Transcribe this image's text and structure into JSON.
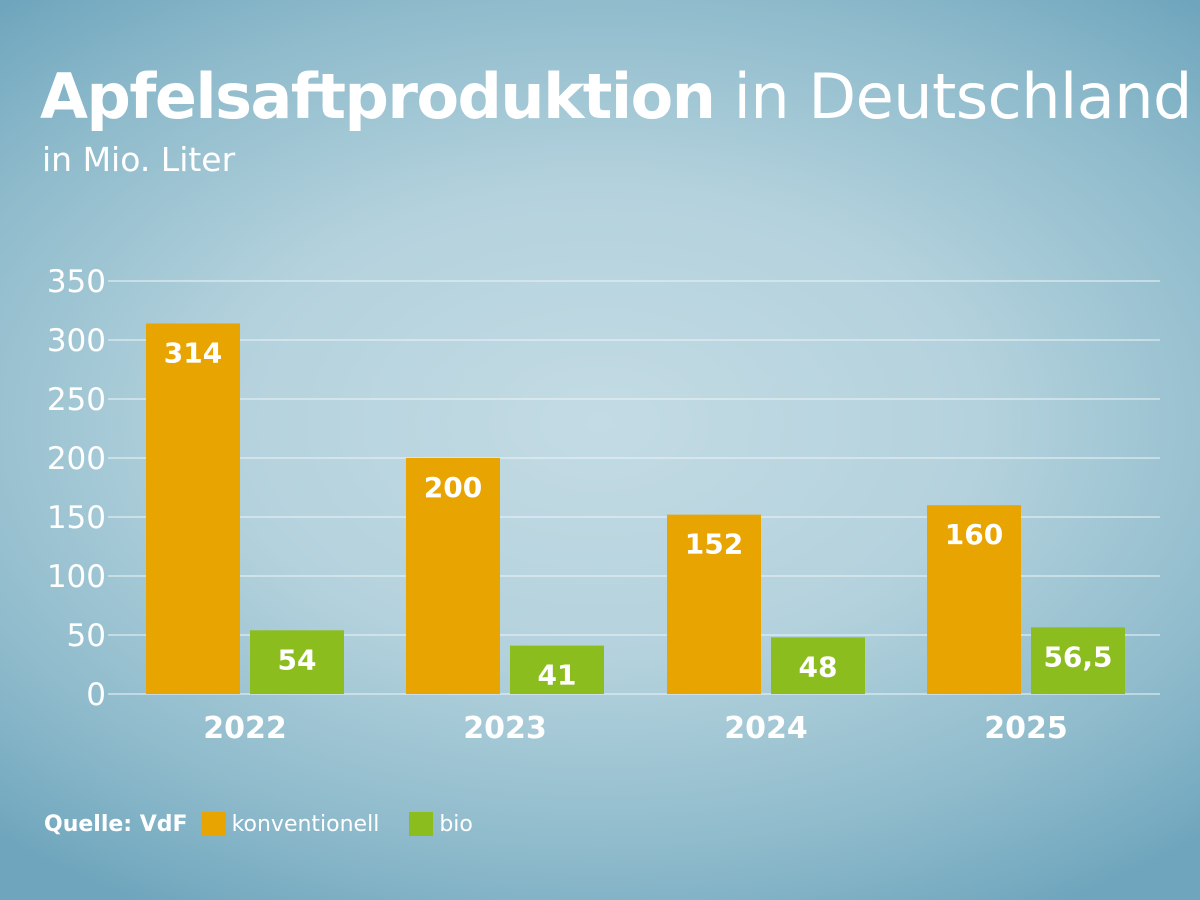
{
  "title_bold": "Apfelsaftproduktion",
  "title_regular": "in Deutschland",
  "subtitle": "in Mio. Liter",
  "source": "Quelle: VdF",
  "colors": {
    "konventionell": "#e8a400",
    "bio": "#8cbd1f",
    "gridline": "#eaf3f6"
  },
  "chart_data": {
    "type": "bar",
    "categories": [
      "2022",
      "2023",
      "2024",
      "2025"
    ],
    "series": [
      {
        "name": "konventionell",
        "values": [
          314,
          200,
          152,
          160
        ],
        "labels": [
          "314",
          "200",
          "152",
          "160"
        ]
      },
      {
        "name": "bio",
        "values": [
          54,
          41,
          48,
          56.5
        ],
        "labels": [
          "54",
          "41",
          "48",
          "56,5"
        ]
      }
    ],
    "ylim": [
      0,
      350
    ],
    "yticks": [
      "0",
      "50",
      "100",
      "150",
      "200",
      "250",
      "300",
      "350"
    ],
    "grid": true,
    "legend": "bottom-left"
  }
}
